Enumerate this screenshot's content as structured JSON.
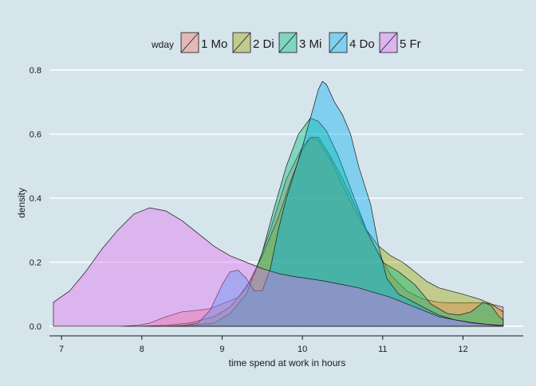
{
  "chart_data": {
    "type": "area",
    "title": "",
    "xlabel": "time spend at work in hours",
    "ylabel": "density",
    "xlim": [
      6.85,
      12.75
    ],
    "ylim": [
      -0.03,
      0.84
    ],
    "x_ticks": [
      7,
      8,
      9,
      10,
      11,
      12
    ],
    "y_ticks": [
      0.0,
      0.2,
      0.4,
      0.6,
      0.8
    ],
    "y_tick_labels": [
      "0.0",
      "0.2",
      "0.4",
      "0.6",
      "0.8"
    ],
    "grid": "horizontal major gridlines",
    "legend": {
      "title": "wday",
      "placement": "top"
    },
    "series": [
      {
        "name": "1 Mo",
        "color": "#F8766D",
        "points": [
          [
            7.75,
            0.0
          ],
          [
            7.95,
            0.003
          ],
          [
            8.1,
            0.01
          ],
          [
            8.3,
            0.03
          ],
          [
            8.5,
            0.045
          ],
          [
            8.7,
            0.05
          ],
          [
            8.85,
            0.055
          ],
          [
            9.0,
            0.07
          ],
          [
            9.2,
            0.09
          ],
          [
            9.4,
            0.16
          ],
          [
            9.6,
            0.3
          ],
          [
            9.8,
            0.46
          ],
          [
            10.0,
            0.56
          ],
          [
            10.1,
            0.59
          ],
          [
            10.2,
            0.58
          ],
          [
            10.35,
            0.52
          ],
          [
            10.5,
            0.44
          ],
          [
            10.7,
            0.34
          ],
          [
            10.9,
            0.25
          ],
          [
            11.1,
            0.16
          ],
          [
            11.3,
            0.11
          ],
          [
            11.5,
            0.085
          ],
          [
            11.7,
            0.075
          ],
          [
            11.9,
            0.073
          ],
          [
            12.1,
            0.074
          ],
          [
            12.3,
            0.072
          ],
          [
            12.5,
            0.06
          ]
        ]
      },
      {
        "name": "2 Di",
        "color": "#A3A500",
        "points": [
          [
            8.0,
            0.0
          ],
          [
            8.3,
            0.003
          ],
          [
            8.6,
            0.01
          ],
          [
            8.9,
            0.03
          ],
          [
            9.1,
            0.06
          ],
          [
            9.3,
            0.12
          ],
          [
            9.5,
            0.22
          ],
          [
            9.7,
            0.34
          ],
          [
            9.85,
            0.45
          ],
          [
            10.0,
            0.55
          ],
          [
            10.1,
            0.59
          ],
          [
            10.2,
            0.59
          ],
          [
            10.35,
            0.53
          ],
          [
            10.5,
            0.46
          ],
          [
            10.65,
            0.38
          ],
          [
            10.8,
            0.3
          ],
          [
            10.95,
            0.25
          ],
          [
            11.1,
            0.22
          ],
          [
            11.25,
            0.2
          ],
          [
            11.4,
            0.17
          ],
          [
            11.55,
            0.14
          ],
          [
            11.7,
            0.12
          ],
          [
            11.85,
            0.11
          ],
          [
            12.0,
            0.1
          ],
          [
            12.2,
            0.085
          ],
          [
            12.35,
            0.07
          ],
          [
            12.5,
            0.045
          ]
        ]
      },
      {
        "name": "3 Mi",
        "color": "#00BF7D",
        "points": [
          [
            8.3,
            0.0
          ],
          [
            8.6,
            0.003
          ],
          [
            8.9,
            0.01
          ],
          [
            9.1,
            0.04
          ],
          [
            9.3,
            0.1
          ],
          [
            9.5,
            0.23
          ],
          [
            9.65,
            0.37
          ],
          [
            9.8,
            0.5
          ],
          [
            9.95,
            0.6
          ],
          [
            10.1,
            0.65
          ],
          [
            10.2,
            0.64
          ],
          [
            10.3,
            0.61
          ],
          [
            10.45,
            0.53
          ],
          [
            10.6,
            0.43
          ],
          [
            10.8,
            0.3
          ],
          [
            11.0,
            0.2
          ],
          [
            11.2,
            0.17
          ],
          [
            11.4,
            0.13
          ],
          [
            11.6,
            0.07
          ],
          [
            11.8,
            0.04
          ],
          [
            11.95,
            0.035
          ],
          [
            12.1,
            0.045
          ],
          [
            12.25,
            0.075
          ],
          [
            12.35,
            0.065
          ],
          [
            12.45,
            0.03
          ],
          [
            12.5,
            0.02
          ]
        ]
      },
      {
        "name": "4 Do",
        "color": "#00B0F6",
        "points": [
          [
            8.5,
            0.0
          ],
          [
            8.7,
            0.01
          ],
          [
            8.85,
            0.05
          ],
          [
            9.0,
            0.13
          ],
          [
            9.1,
            0.17
          ],
          [
            9.2,
            0.175
          ],
          [
            9.3,
            0.15
          ],
          [
            9.4,
            0.11
          ],
          [
            9.5,
            0.11
          ],
          [
            9.6,
            0.18
          ],
          [
            9.7,
            0.3
          ],
          [
            9.8,
            0.4
          ],
          [
            9.9,
            0.48
          ],
          [
            10.0,
            0.56
          ],
          [
            10.1,
            0.65
          ],
          [
            10.2,
            0.74
          ],
          [
            10.25,
            0.765
          ],
          [
            10.3,
            0.755
          ],
          [
            10.4,
            0.7
          ],
          [
            10.5,
            0.66
          ],
          [
            10.6,
            0.6
          ],
          [
            10.7,
            0.5
          ],
          [
            10.85,
            0.38
          ],
          [
            10.95,
            0.25
          ],
          [
            11.05,
            0.15
          ],
          [
            11.2,
            0.1
          ],
          [
            11.35,
            0.08
          ],
          [
            11.5,
            0.06
          ],
          [
            11.7,
            0.035
          ],
          [
            11.9,
            0.02
          ],
          [
            12.1,
            0.01
          ],
          [
            12.3,
            0.005
          ],
          [
            12.5,
            0.0
          ]
        ]
      },
      {
        "name": "5 Fr",
        "color": "#E76BF3",
        "points": [
          [
            6.9,
            0.075
          ],
          [
            7.1,
            0.11
          ],
          [
            7.3,
            0.17
          ],
          [
            7.5,
            0.24
          ],
          [
            7.7,
            0.3
          ],
          [
            7.9,
            0.35
          ],
          [
            8.1,
            0.37
          ],
          [
            8.3,
            0.36
          ],
          [
            8.5,
            0.33
          ],
          [
            8.7,
            0.29
          ],
          [
            8.9,
            0.25
          ],
          [
            9.1,
            0.22
          ],
          [
            9.3,
            0.2
          ],
          [
            9.5,
            0.18
          ],
          [
            9.7,
            0.165
          ],
          [
            9.9,
            0.155
          ],
          [
            10.1,
            0.148
          ],
          [
            10.3,
            0.14
          ],
          [
            10.5,
            0.13
          ],
          [
            10.7,
            0.12
          ],
          [
            10.9,
            0.105
          ],
          [
            11.1,
            0.09
          ],
          [
            11.3,
            0.07
          ],
          [
            11.5,
            0.05
          ],
          [
            11.7,
            0.03
          ],
          [
            11.9,
            0.02
          ],
          [
            12.1,
            0.012
          ],
          [
            12.3,
            0.006
          ],
          [
            12.5,
            0.003
          ]
        ]
      }
    ]
  }
}
